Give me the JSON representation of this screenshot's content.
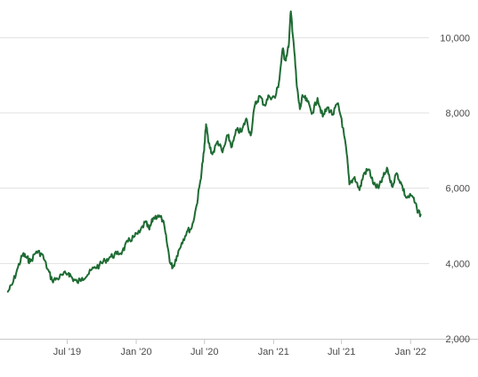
{
  "chart_data": {
    "type": "line",
    "title": "",
    "xlabel": "",
    "ylabel": "",
    "grid": true,
    "legend": "none",
    "line_color": "#1e6b33",
    "grid_color": "#e1e1e1",
    "axis_color": "#c8c8c8",
    "ylim": [
      2000,
      11000
    ],
    "xlim": [
      "2019-01-22",
      "2022-02-05"
    ],
    "y_ticks": [
      {
        "value": 2000,
        "label": "2,000"
      },
      {
        "value": 4000,
        "label": "4,000"
      },
      {
        "value": 6000,
        "label": "6,000"
      },
      {
        "value": 8000,
        "label": "8,000"
      },
      {
        "value": 10000,
        "label": "10,000"
      }
    ],
    "x_ticks": [
      {
        "date": "2019-07-01",
        "label": "Jul '19"
      },
      {
        "date": "2020-01-01",
        "label": "Jan '20"
      },
      {
        "date": "2020-07-01",
        "label": "Jul '20"
      },
      {
        "date": "2021-01-01",
        "label": "Jan '21"
      },
      {
        "date": "2021-07-01",
        "label": "Jul '21"
      },
      {
        "date": "2022-01-01",
        "label": "Jan '22"
      }
    ],
    "series": [
      {
        "points": [
          [
            "2019-01-24",
            3250
          ],
          [
            "2019-02-05",
            3450
          ],
          [
            "2019-02-20",
            3900
          ],
          [
            "2019-03-05",
            4250
          ],
          [
            "2019-03-15",
            4150
          ],
          [
            "2019-03-25",
            4050
          ],
          [
            "2019-04-10",
            4320
          ],
          [
            "2019-04-25",
            4250
          ],
          [
            "2019-05-10",
            3850
          ],
          [
            "2019-05-22",
            3550
          ],
          [
            "2019-06-05",
            3600
          ],
          [
            "2019-06-20",
            3700
          ],
          [
            "2019-07-05",
            3750
          ],
          [
            "2019-07-15",
            3600
          ],
          [
            "2019-07-28",
            3500
          ],
          [
            "2019-08-10",
            3620
          ],
          [
            "2019-08-25",
            3700
          ],
          [
            "2019-09-10",
            3880
          ],
          [
            "2019-09-25",
            3950
          ],
          [
            "2019-10-10",
            4080
          ],
          [
            "2019-10-25",
            4180
          ],
          [
            "2019-11-10",
            4250
          ],
          [
            "2019-11-25",
            4320
          ],
          [
            "2019-12-10",
            4580
          ],
          [
            "2019-12-25",
            4700
          ],
          [
            "2020-01-10",
            4820
          ],
          [
            "2020-01-25",
            5100
          ],
          [
            "2020-02-05",
            4900
          ],
          [
            "2020-02-15",
            5200
          ],
          [
            "2020-02-28",
            5280
          ],
          [
            "2020-03-12",
            5150
          ],
          [
            "2020-03-22",
            4600
          ],
          [
            "2020-04-01",
            4000
          ],
          [
            "2020-04-08",
            3900
          ],
          [
            "2020-04-18",
            4200
          ],
          [
            "2020-05-01",
            4550
          ],
          [
            "2020-05-15",
            4850
          ],
          [
            "2020-05-28",
            4950
          ],
          [
            "2020-06-10",
            5550
          ],
          [
            "2020-06-20",
            6200
          ],
          [
            "2020-06-30",
            7000
          ],
          [
            "2020-07-05",
            7700
          ],
          [
            "2020-07-12",
            7200
          ],
          [
            "2020-07-22",
            6900
          ],
          [
            "2020-08-05",
            7250
          ],
          [
            "2020-08-18",
            6950
          ],
          [
            "2020-09-01",
            7400
          ],
          [
            "2020-09-12",
            7100
          ],
          [
            "2020-09-25",
            7550
          ],
          [
            "2020-10-08",
            7500
          ],
          [
            "2020-10-20",
            7850
          ],
          [
            "2020-11-01",
            7400
          ],
          [
            "2020-11-12",
            8200
          ],
          [
            "2020-11-25",
            8450
          ],
          [
            "2020-12-08",
            8200
          ],
          [
            "2020-12-20",
            8450
          ],
          [
            "2021-01-05",
            8400
          ],
          [
            "2021-01-15",
            8800
          ],
          [
            "2021-01-25",
            9700
          ],
          [
            "2021-02-01",
            9400
          ],
          [
            "2021-02-10",
            9750
          ],
          [
            "2021-02-16",
            10700
          ],
          [
            "2021-02-24",
            9800
          ],
          [
            "2021-03-04",
            8700
          ],
          [
            "2021-03-12",
            8100
          ],
          [
            "2021-03-20",
            8450
          ],
          [
            "2021-04-01",
            8300
          ],
          [
            "2021-04-15",
            8000
          ],
          [
            "2021-04-28",
            8400
          ],
          [
            "2021-05-12",
            7900
          ],
          [
            "2021-05-25",
            8150
          ],
          [
            "2021-06-08",
            7950
          ],
          [
            "2021-06-20",
            8250
          ],
          [
            "2021-07-01",
            7850
          ],
          [
            "2021-07-15",
            6900
          ],
          [
            "2021-07-22",
            6100
          ],
          [
            "2021-08-05",
            6300
          ],
          [
            "2021-08-18",
            5950
          ],
          [
            "2021-08-30",
            6400
          ],
          [
            "2021-09-12",
            6500
          ],
          [
            "2021-09-25",
            6100
          ],
          [
            "2021-10-08",
            6000
          ],
          [
            "2021-10-20",
            6300
          ],
          [
            "2021-11-01",
            6500
          ],
          [
            "2021-11-12",
            6050
          ],
          [
            "2021-11-25",
            6400
          ],
          [
            "2021-12-08",
            6100
          ],
          [
            "2021-12-20",
            5750
          ],
          [
            "2022-01-05",
            5800
          ],
          [
            "2022-01-18",
            5450
          ],
          [
            "2022-01-28",
            5300
          ]
        ]
      }
    ]
  }
}
